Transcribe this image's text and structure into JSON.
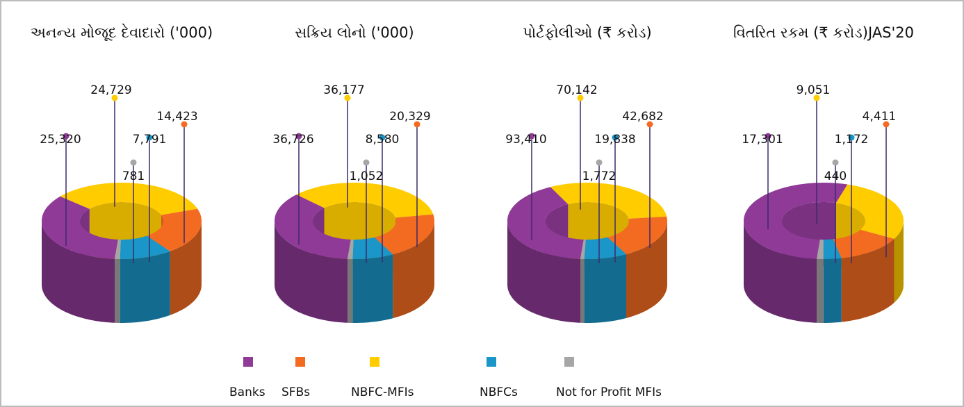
{
  "chart_data": [
    {
      "type": "donut3d",
      "title": "અનન્ય મોજૂદ દેવાદારો ('000)",
      "values": [
        25320,
        14423,
        24729,
        7791,
        781
      ],
      "value_labels": [
        "25,320",
        "14,423",
        "24,729",
        "7,791",
        "781"
      ]
    },
    {
      "type": "donut3d",
      "title": "સક્રિય લોનો ('000)",
      "values": [
        36726,
        20329,
        36177,
        8580,
        1052
      ],
      "value_labels": [
        "36,726",
        "20,329",
        "36,177",
        "8,580",
        "1,052"
      ]
    },
    {
      "type": "donut3d",
      "title": "પોર્ટફોલીઓ (₹ કરોડ)",
      "values": [
        93410,
        42682,
        70142,
        19838,
        1772
      ],
      "value_labels": [
        "93,410",
        "42,682",
        "70,142",
        "19,838",
        "1,772"
      ]
    },
    {
      "type": "donut3d",
      "title": "વિતરિત રકમ (₹ કરોડ)JAS'20",
      "values": [
        17301,
        4411,
        9051,
        1172,
        440
      ],
      "value_labels": [
        "17,301",
        "4,411",
        "9,051",
        "1,172",
        "440"
      ]
    }
  ],
  "legend": {
    "labels": [
      "Banks",
      "SFBs",
      "NBFC-MFIs",
      "NBFCs",
      "Not for Profit MFIs"
    ],
    "colors": [
      "#8e3a96",
      "#f26b21",
      "#ffcc00",
      "#1a96c8",
      "#a6a6a6"
    ]
  }
}
